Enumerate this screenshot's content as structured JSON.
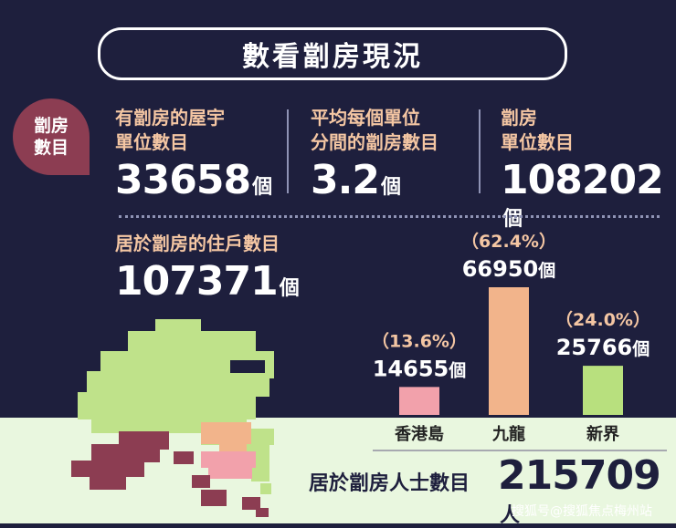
{
  "title": "數看劏房現況",
  "badge": [
    "劏房",
    "數目"
  ],
  "stats": [
    {
      "label": [
        "有劏房的屋宇",
        "單位數目"
      ],
      "value": "33658",
      "unit": "個"
    },
    {
      "label": [
        "平均每個單位",
        "分間的劏房數目"
      ],
      "value": "3.2",
      "unit": "個"
    },
    {
      "label": [
        "劏房",
        "單位數目"
      ],
      "value": "108202",
      "unit": "個"
    }
  ],
  "households": {
    "label": "居於劏房的住戶數目",
    "value": "107371",
    "unit": "個"
  },
  "chart_data": {
    "type": "bar",
    "categories": [
      "香港島",
      "九龍",
      "新界"
    ],
    "values": [
      14655,
      66950,
      25766
    ],
    "value_labels": [
      "14655",
      "66950",
      "25766"
    ],
    "percent_labels": [
      "（13.6%）",
      "（62.4%）",
      "（24.0%）"
    ],
    "unit": "個",
    "colors": [
      "#f2a1ab",
      "#f2b48b",
      "#b8e07e"
    ]
  },
  "total": {
    "label": "居於劏房人士數目",
    "value": "215709",
    "unit": "人"
  },
  "watermark": "搜狐号@搜狐焦点梅州站"
}
